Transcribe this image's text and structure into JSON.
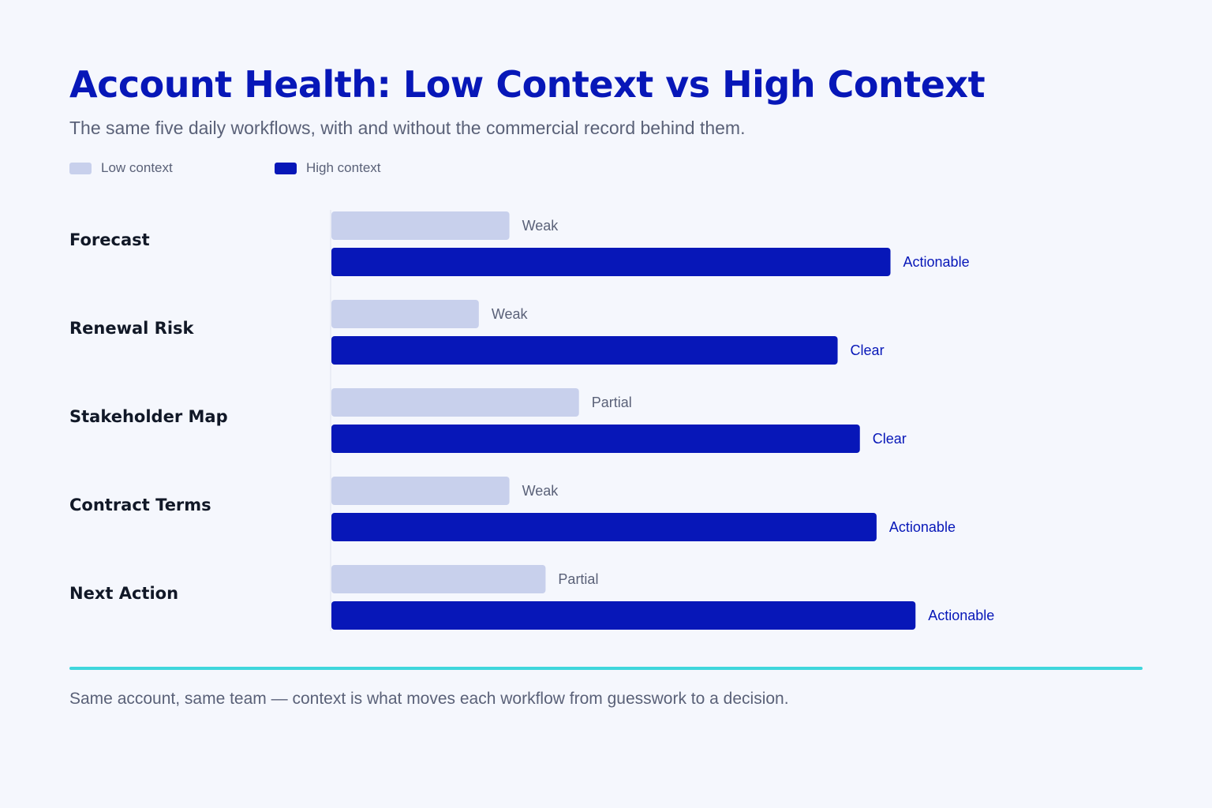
{
  "chart_data": {
    "type": "bar",
    "orientation": "horizontal",
    "title": "Account Health: Low Context vs High Context",
    "subtitle": "The same five daily workflows, with and without the commercial record behind them.",
    "categories": [
      "Forecast",
      "Renewal Risk",
      "Stakeholder Map",
      "Contract Terms",
      "Next Action"
    ],
    "series": [
      {
        "name": "Low context",
        "color": "#c8d0ec",
        "values": [
          32,
          26.5,
          44.5,
          32,
          38.5
        ],
        "labels": [
          "Weak",
          "Weak",
          "Partial",
          "Weak",
          "Partial"
        ]
      },
      {
        "name": "High context",
        "color": "#0717b8",
        "values": [
          100.5,
          91,
          95,
          98,
          105
        ],
        "labels": [
          "Actionable",
          "Clear",
          "Clear",
          "Actionable",
          "Actionable"
        ]
      }
    ],
    "legend_position": "top-left",
    "grid": false,
    "xlim": [
      0,
      140
    ]
  },
  "footnote": "Same account, same team — context is what moves each workflow from guesswork to a decision.",
  "colors": {
    "accent": "#0717b8",
    "muted_bar": "#c8d0ec",
    "divider": "#3fd6dc",
    "background": "#f5f7fd"
  }
}
